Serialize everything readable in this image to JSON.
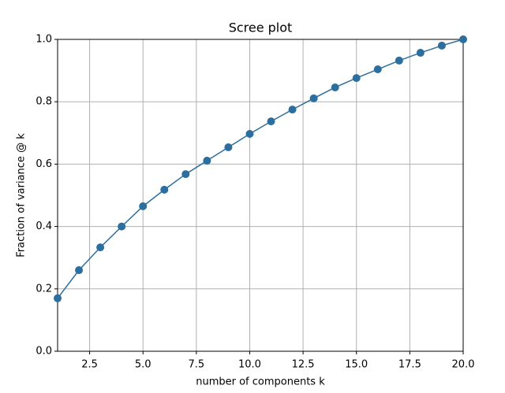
{
  "chart_data": {
    "type": "line",
    "title": "Scree plot",
    "x_label": "number of components k",
    "y_label": "Fraction of variance @  k",
    "x": [
      1,
      2,
      3,
      4,
      5,
      6,
      7,
      8,
      9,
      10,
      11,
      12,
      13,
      14,
      15,
      16,
      17,
      18,
      19,
      20
    ],
    "values": [
      0.17,
      0.26,
      0.333,
      0.4,
      0.465,
      0.518,
      0.568,
      0.611,
      0.654,
      0.697,
      0.737,
      0.775,
      0.811,
      0.846,
      0.876,
      0.904,
      0.932,
      0.957,
      0.98,
      1.0
    ],
    "color": "#2c6e9e",
    "markers": true,
    "xlim": [
      1,
      20
    ],
    "xticks": [
      2.5,
      {
        "value": 5,
        "label": "5.0"
      },
      7.5,
      {
        "value": 10,
        "label": "10.0"
      },
      12.5,
      {
        "value": 15,
        "label": "15.0"
      },
      17.5,
      {
        "value": 20,
        "label": "20.0"
      }
    ],
    "ylim": [
      0,
      1
    ],
    "yticks": [
      {
        "value": 0,
        "label": "0.0"
      },
      0.2,
      0.4,
      0.6,
      0.8,
      {
        "value": 1,
        "label": "1.0"
      }
    ],
    "grid": true
  }
}
